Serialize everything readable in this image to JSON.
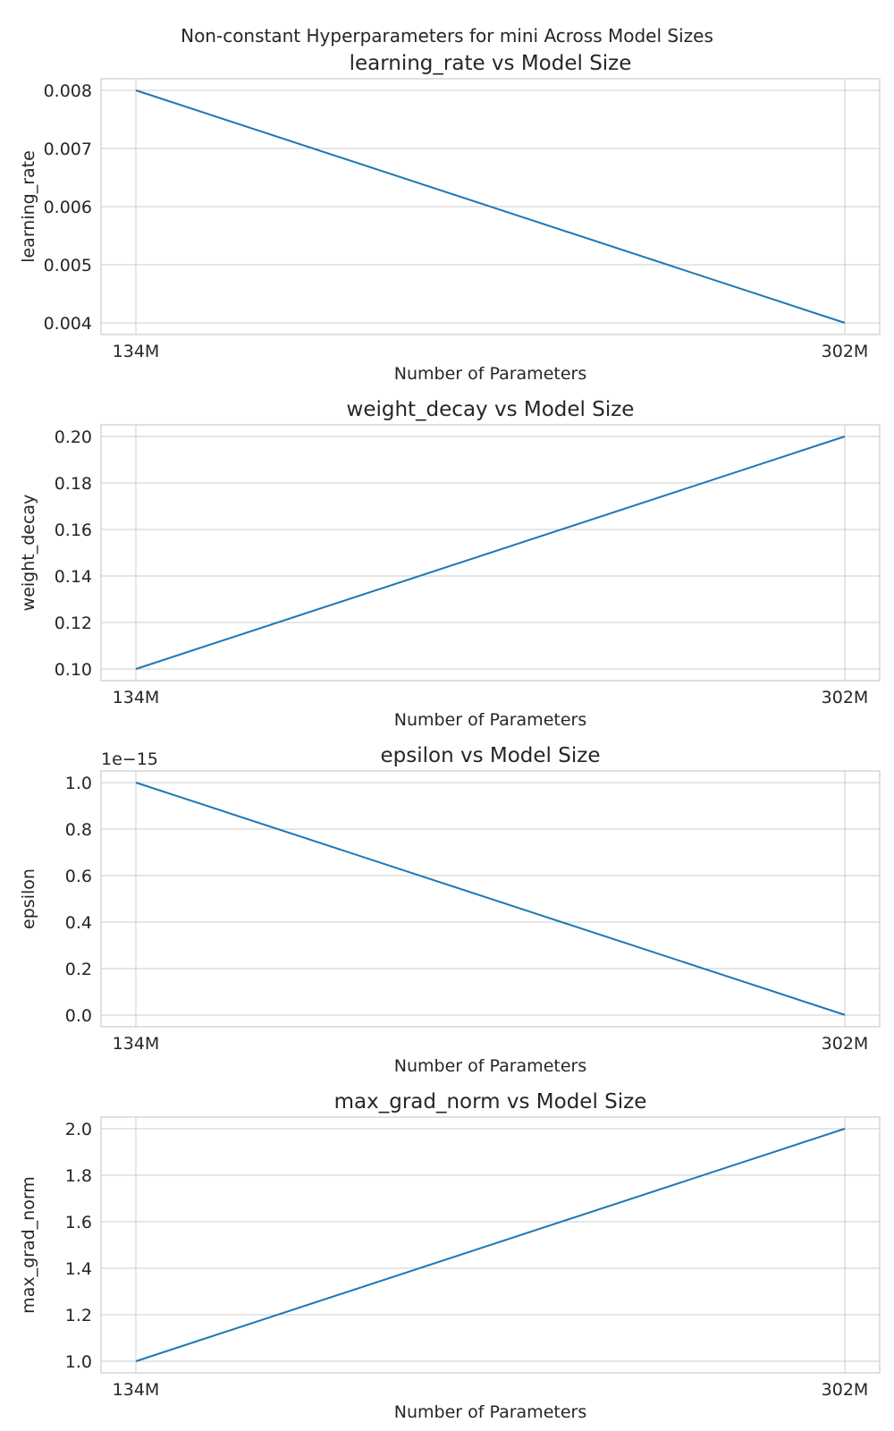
{
  "figure": {
    "title": "Non-constant Hyperparameters for mini Across Model Sizes",
    "line_color": "#1f77b4",
    "grid": true,
    "background": "#ffffff"
  },
  "chart_data": [
    {
      "type": "line",
      "title": "learning_rate vs Model Size",
      "xlabel": "Number of Parameters",
      "ylabel": "learning_rate",
      "x": [
        "134M",
        "302M"
      ],
      "series": [
        {
          "values": [
            0.008,
            0.004
          ]
        }
      ],
      "ylim": [
        0.0038,
        0.0082
      ],
      "yticks": [
        "0.004",
        "0.005",
        "0.006",
        "0.007",
        "0.008"
      ],
      "ytick_values": [
        0.004,
        0.005,
        0.006,
        0.007,
        0.008
      ],
      "offset_label": ""
    },
    {
      "type": "line",
      "title": "weight_decay vs Model Size",
      "xlabel": "Number of Parameters",
      "ylabel": "weight_decay",
      "x": [
        "134M",
        "302M"
      ],
      "series": [
        {
          "values": [
            0.1,
            0.2
          ]
        }
      ],
      "ylim": [
        0.095,
        0.205
      ],
      "yticks": [
        "0.10",
        "0.12",
        "0.14",
        "0.16",
        "0.18",
        "0.20"
      ],
      "ytick_values": [
        0.1,
        0.12,
        0.14,
        0.16,
        0.18,
        0.2
      ],
      "offset_label": ""
    },
    {
      "type": "line",
      "title": "epsilon vs Model Size",
      "xlabel": "Number of Parameters",
      "ylabel": "epsilon",
      "x": [
        "134M",
        "302M"
      ],
      "series": [
        {
          "values": [
            1e-15,
            1e-18
          ]
        }
      ],
      "ylim": [
        -5e-17,
        1.05e-15
      ],
      "yticks": [
        "0.0",
        "0.2",
        "0.4",
        "0.6",
        "0.8",
        "1.0"
      ],
      "ytick_values": [
        0,
        2e-16,
        4e-16,
        6e-16,
        8e-16,
        1e-15
      ],
      "offset_label": "1e−15"
    },
    {
      "type": "line",
      "title": "max_grad_norm vs Model Size",
      "xlabel": "Number of Parameters",
      "ylabel": "max_grad_norm",
      "x": [
        "134M",
        "302M"
      ],
      "series": [
        {
          "values": [
            1.0,
            2.0
          ]
        }
      ],
      "ylim": [
        0.95,
        2.05
      ],
      "yticks": [
        "1.0",
        "1.2",
        "1.4",
        "1.6",
        "1.8",
        "2.0"
      ],
      "ytick_values": [
        1.0,
        1.2,
        1.4,
        1.6,
        1.8,
        2.0
      ],
      "offset_label": ""
    }
  ]
}
